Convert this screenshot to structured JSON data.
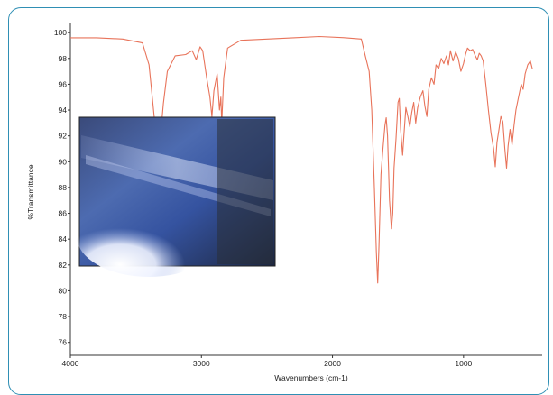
{
  "chart_data": {
    "type": "line",
    "xlabel": "Wavenumbers (cm-1)",
    "ylabel": "%Transmittance",
    "xlim": [
      4000,
      400
    ],
    "ylim": [
      75,
      100.5
    ],
    "x_ticks": [
      "4000",
      "3000",
      "2000",
      "1000"
    ],
    "y_ticks": [
      "100",
      "98",
      "96",
      "94",
      "92",
      "90",
      "88",
      "86",
      "84",
      "82",
      "80",
      "78",
      "76"
    ],
    "grid": false,
    "legend": "none",
    "inset": "photo",
    "series": [
      {
        "color": "#e8735a",
        "points": [
          [
            4000,
            99.6
          ],
          [
            3800,
            99.6
          ],
          [
            3600,
            99.5
          ],
          [
            3450,
            99.2
          ],
          [
            3400,
            97.5
          ],
          [
            3370,
            94.5
          ],
          [
            3350,
            92.4
          ],
          [
            3330,
            91.5
          ],
          [
            3310,
            92.2
          ],
          [
            3290,
            94.5
          ],
          [
            3260,
            97.0
          ],
          [
            3200,
            98.2
          ],
          [
            3120,
            98.3
          ],
          [
            3070,
            98.6
          ],
          [
            3040,
            97.9
          ],
          [
            3010,
            98.9
          ],
          [
            2990,
            98.6
          ],
          [
            2960,
            96.5
          ],
          [
            2935,
            95.0
          ],
          [
            2920,
            93.5
          ],
          [
            2905,
            95.5
          ],
          [
            2880,
            96.8
          ],
          [
            2862,
            94.0
          ],
          [
            2852,
            95.0
          ],
          [
            2845,
            93.0
          ],
          [
            2830,
            96.5
          ],
          [
            2800,
            98.8
          ],
          [
            2700,
            99.4
          ],
          [
            2500,
            99.5
          ],
          [
            2300,
            99.6
          ],
          [
            2100,
            99.7
          ],
          [
            1900,
            99.6
          ],
          [
            1780,
            99.5
          ],
          [
            1750,
            98.2
          ],
          [
            1720,
            97.0
          ],
          [
            1700,
            94.0
          ],
          [
            1680,
            88.0
          ],
          [
            1665,
            83.0
          ],
          [
            1655,
            80.6
          ],
          [
            1645,
            83.5
          ],
          [
            1630,
            89.0
          ],
          [
            1615,
            91.0
          ],
          [
            1600,
            92.8
          ],
          [
            1590,
            93.4
          ],
          [
            1580,
            92.0
          ],
          [
            1565,
            87.0
          ],
          [
            1550,
            84.8
          ],
          [
            1540,
            86.0
          ],
          [
            1530,
            89.5
          ],
          [
            1515,
            91.8
          ],
          [
            1500,
            94.6
          ],
          [
            1490,
            94.9
          ],
          [
            1480,
            92.5
          ],
          [
            1465,
            90.5
          ],
          [
            1455,
            92.0
          ],
          [
            1440,
            94.2
          ],
          [
            1425,
            93.5
          ],
          [
            1410,
            92.7
          ],
          [
            1395,
            93.8
          ],
          [
            1380,
            94.6
          ],
          [
            1365,
            93.0
          ],
          [
            1350,
            94.2
          ],
          [
            1330,
            95.0
          ],
          [
            1310,
            95.5
          ],
          [
            1295,
            94.3
          ],
          [
            1280,
            93.5
          ],
          [
            1265,
            95.6
          ],
          [
            1245,
            96.5
          ],
          [
            1225,
            96.0
          ],
          [
            1210,
            97.5
          ],
          [
            1190,
            97.2
          ],
          [
            1170,
            98.0
          ],
          [
            1150,
            97.6
          ],
          [
            1130,
            98.2
          ],
          [
            1115,
            97.5
          ],
          [
            1100,
            98.6
          ],
          [
            1080,
            97.8
          ],
          [
            1060,
            98.5
          ],
          [
            1040,
            98.0
          ],
          [
            1020,
            97.0
          ],
          [
            1000,
            97.6
          ],
          [
            985,
            98.3
          ],
          [
            970,
            98.8
          ],
          [
            950,
            98.6
          ],
          [
            930,
            98.7
          ],
          [
            910,
            98.2
          ],
          [
            895,
            97.9
          ],
          [
            880,
            98.4
          ],
          [
            865,
            98.2
          ],
          [
            850,
            97.8
          ],
          [
            830,
            96.0
          ],
          [
            810,
            94.0
          ],
          [
            790,
            92.2
          ],
          [
            770,
            91.0
          ],
          [
            758,
            89.6
          ],
          [
            745,
            91.5
          ],
          [
            730,
            92.5
          ],
          [
            715,
            93.5
          ],
          [
            700,
            93.1
          ],
          [
            685,
            91.0
          ],
          [
            672,
            89.5
          ],
          [
            660,
            91.2
          ],
          [
            645,
            92.5
          ],
          [
            630,
            91.3
          ],
          [
            615,
            92.8
          ],
          [
            600,
            94.0
          ],
          [
            580,
            95.0
          ],
          [
            560,
            96.0
          ],
          [
            545,
            95.6
          ],
          [
            530,
            96.8
          ],
          [
            510,
            97.5
          ],
          [
            490,
            97.8
          ],
          [
            475,
            97.2
          ]
        ]
      }
    ]
  }
}
